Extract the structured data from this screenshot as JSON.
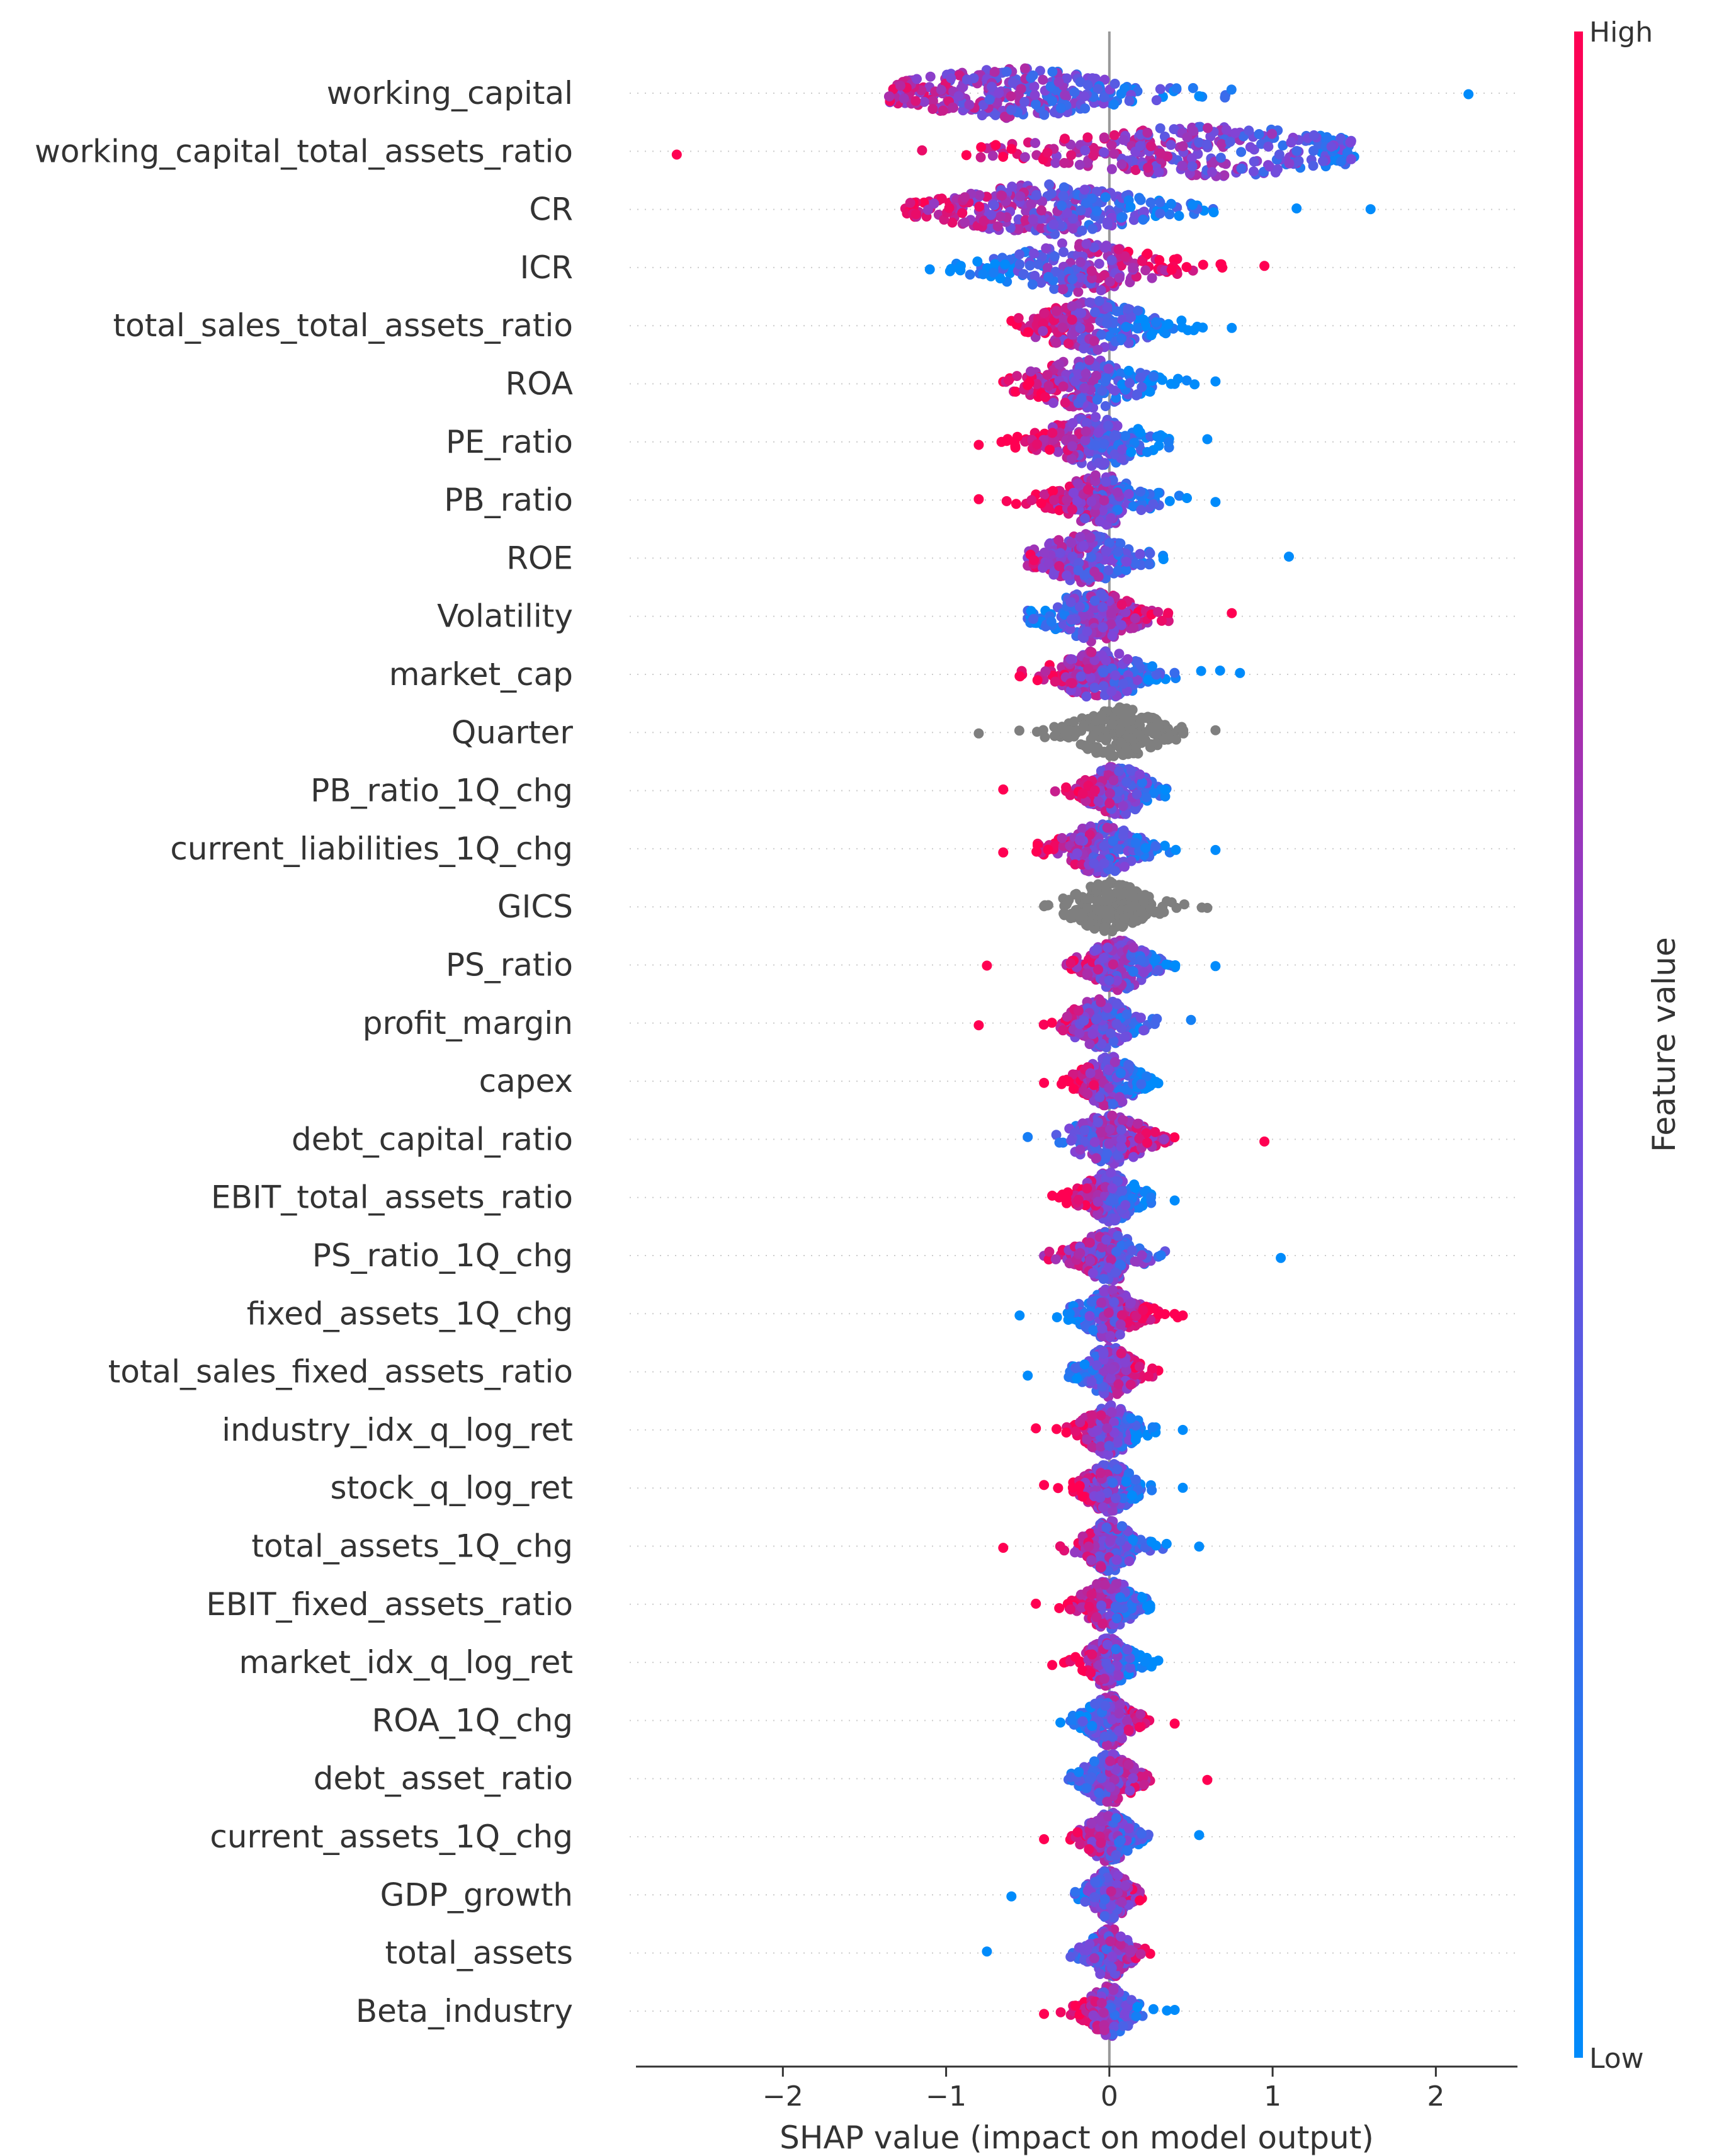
{
  "chart_data": {
    "type": "scatter",
    "subtype": "shap-beeswarm",
    "xlabel": "SHAP value (impact on model output)",
    "xlim": [
      -2.9,
      2.5
    ],
    "xticks": [
      -2,
      -1,
      0,
      1,
      2
    ],
    "grid": false,
    "colorbar": {
      "label": "Feature value",
      "high_label": "High",
      "low_label": "Low",
      "high_color": "#ff0052",
      "low_color": "#008bfb"
    },
    "categorical_color": "#7f7f7f",
    "features": [
      {
        "name": "working_capital",
        "min": -1.35,
        "max": 2.2,
        "center": -0.6,
        "spread": 0.9,
        "trend": "neg",
        "categorical": false
      },
      {
        "name": "working_capital_total_assets_ratio",
        "min": -2.65,
        "max": 1.5,
        "center": 0.6,
        "spread": 1.2,
        "trend": "neg",
        "categorical": false
      },
      {
        "name": "CR",
        "min": -1.25,
        "max": 1.6,
        "center": -0.4,
        "spread": 0.8,
        "trend": "neg",
        "categorical": false
      },
      {
        "name": "ICR",
        "min": -1.1,
        "max": 0.95,
        "center": -0.2,
        "spread": 0.65,
        "trend": "pos",
        "categorical": false
      },
      {
        "name": "total_sales_total_assets_ratio",
        "min": -0.6,
        "max": 0.75,
        "center": -0.1,
        "spread": 0.45,
        "trend": "neg",
        "categorical": false
      },
      {
        "name": "ROA",
        "min": -0.65,
        "max": 0.65,
        "center": -0.15,
        "spread": 0.45,
        "trend": "neg",
        "categorical": false
      },
      {
        "name": "PE_ratio",
        "min": -0.8,
        "max": 0.6,
        "center": -0.1,
        "spread": 0.4,
        "trend": "neg",
        "categorical": false
      },
      {
        "name": "PB_ratio",
        "min": -0.8,
        "max": 0.65,
        "center": -0.05,
        "spread": 0.35,
        "trend": "neg",
        "categorical": false
      },
      {
        "name": "ROE",
        "min": -0.5,
        "max": 1.1,
        "center": -0.15,
        "spread": 0.35,
        "trend": "neg",
        "categorical": false
      },
      {
        "name": "Volatility",
        "min": -0.5,
        "max": 0.75,
        "center": -0.1,
        "spread": 0.35,
        "trend": "pos",
        "categorical": false
      },
      {
        "name": "market_cap",
        "min": -0.55,
        "max": 0.8,
        "center": -0.05,
        "spread": 0.35,
        "trend": "neg",
        "categorical": false
      },
      {
        "name": "Quarter",
        "min": -0.8,
        "max": 0.65,
        "center": 0.05,
        "spread": 0.35,
        "trend": "none",
        "categorical": true
      },
      {
        "name": "PB_ratio_1Q_chg",
        "min": -0.65,
        "max": 0.35,
        "center": 0.05,
        "spread": 0.25,
        "trend": "neg",
        "categorical": false
      },
      {
        "name": "current_liabilities_1Q_chg",
        "min": -0.65,
        "max": 0.65,
        "center": -0.05,
        "spread": 0.3,
        "trend": "neg",
        "categorical": false
      },
      {
        "name": "GICS",
        "min": -0.4,
        "max": 0.6,
        "center": 0.0,
        "spread": 0.3,
        "trend": "none",
        "categorical": true
      },
      {
        "name": "PS_ratio",
        "min": -0.75,
        "max": 0.65,
        "center": 0.05,
        "spread": 0.25,
        "trend": "neg",
        "categorical": false
      },
      {
        "name": "profit_margin",
        "min": -0.8,
        "max": 0.5,
        "center": -0.05,
        "spread": 0.25,
        "trend": "neg",
        "categorical": false
      },
      {
        "name": "capex",
        "min": -0.4,
        "max": 0.3,
        "center": 0.0,
        "spread": 0.22,
        "trend": "neg",
        "categorical": false
      },
      {
        "name": "debt_capital_ratio",
        "min": -0.5,
        "max": 0.95,
        "center": 0.0,
        "spread": 0.3,
        "trend": "pos",
        "categorical": false
      },
      {
        "name": "EBIT_total_assets_ratio",
        "min": -0.35,
        "max": 0.4,
        "center": 0.0,
        "spread": 0.22,
        "trend": "neg",
        "categorical": false
      },
      {
        "name": "PS_ratio_1Q_chg",
        "min": -0.4,
        "max": 1.05,
        "center": 0.0,
        "spread": 0.25,
        "trend": "neg",
        "categorical": false
      },
      {
        "name": "fixed_assets_1Q_chg",
        "min": -0.55,
        "max": 0.45,
        "center": 0.0,
        "spread": 0.22,
        "trend": "pos",
        "categorical": false
      },
      {
        "name": "total_sales_fixed_assets_ratio",
        "min": -0.5,
        "max": 0.3,
        "center": 0.0,
        "spread": 0.2,
        "trend": "pos",
        "categorical": false
      },
      {
        "name": "industry_idx_q_log_ret",
        "min": -0.45,
        "max": 0.45,
        "center": 0.0,
        "spread": 0.2,
        "trend": "neg",
        "categorical": false
      },
      {
        "name": "stock_q_log_ret",
        "min": -0.4,
        "max": 0.45,
        "center": 0.0,
        "spread": 0.2,
        "trend": "neg",
        "categorical": false
      },
      {
        "name": "total_assets_1Q_chg",
        "min": -0.65,
        "max": 0.55,
        "center": 0.0,
        "spread": 0.2,
        "trend": "neg",
        "categorical": false
      },
      {
        "name": "EBIT_fixed_assets_ratio",
        "min": -0.45,
        "max": 0.25,
        "center": 0.0,
        "spread": 0.2,
        "trend": "neg",
        "categorical": false
      },
      {
        "name": "market_idx_q_log_ret",
        "min": -0.35,
        "max": 0.3,
        "center": 0.0,
        "spread": 0.18,
        "trend": "neg",
        "categorical": false
      },
      {
        "name": "ROA_1Q_chg",
        "min": -0.3,
        "max": 0.4,
        "center": 0.0,
        "spread": 0.18,
        "trend": "pos",
        "categorical": false
      },
      {
        "name": "debt_asset_ratio",
        "min": -0.25,
        "max": 0.6,
        "center": 0.0,
        "spread": 0.2,
        "trend": "pos",
        "categorical": false
      },
      {
        "name": "current_assets_1Q_chg",
        "min": -0.4,
        "max": 0.55,
        "center": 0.0,
        "spread": 0.18,
        "trend": "neg",
        "categorical": false
      },
      {
        "name": "GDP_growth",
        "min": -0.6,
        "max": 0.2,
        "center": 0.0,
        "spread": 0.16,
        "trend": "pos",
        "categorical": false
      },
      {
        "name": "total_assets",
        "min": -0.75,
        "max": 0.25,
        "center": 0.0,
        "spread": 0.16,
        "trend": "pos",
        "categorical": false
      },
      {
        "name": "Beta_industry",
        "min": -0.4,
        "max": 0.4,
        "center": 0.0,
        "spread": 0.18,
        "trend": "neg",
        "categorical": false
      }
    ]
  }
}
